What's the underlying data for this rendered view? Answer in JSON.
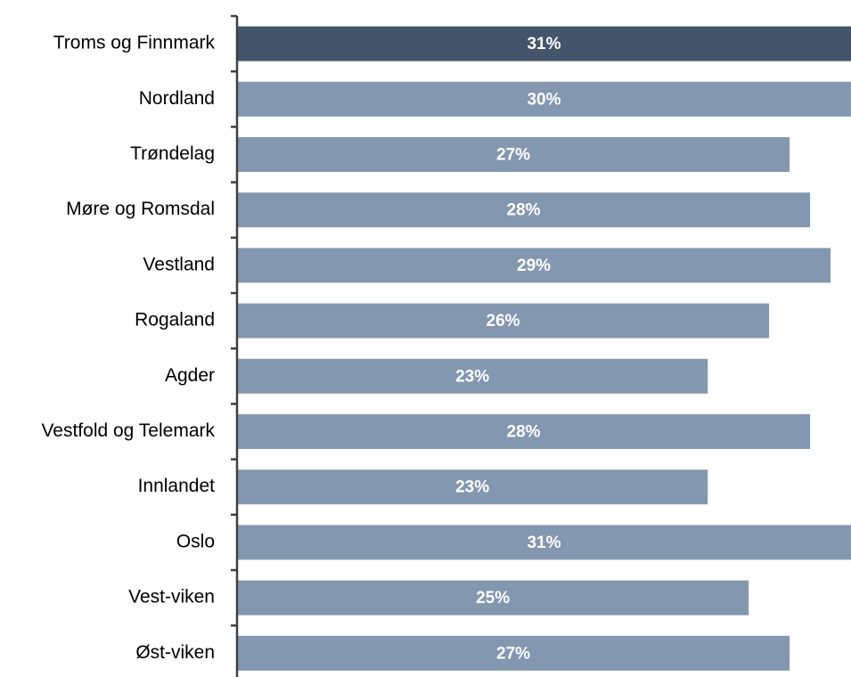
{
  "chart_data": {
    "type": "barh",
    "categories": [
      "Troms og Finnmark",
      "Nordland",
      "Trøndelag",
      "Møre og Romsdal",
      "Vestland",
      "Rogaland",
      "Agder",
      "Vestfold og Telemark",
      "Innlandet",
      "Oslo",
      "Vest-viken",
      "Øst-viken"
    ],
    "values": [
      31,
      30,
      27,
      28,
      29,
      26,
      23,
      28,
      23,
      31,
      25,
      27
    ],
    "value_labels": [
      "31%",
      "30%",
      "27%",
      "28%",
      "29%",
      "26%",
      "23%",
      "28%",
      "23%",
      "31%",
      "25%",
      "27%"
    ],
    "colors": [
      "#44546a",
      "#8497b0",
      "#8497b0",
      "#8497b0",
      "#8497b0",
      "#8497b0",
      "#8497b0",
      "#8497b0",
      "#8497b0",
      "#8497b0",
      "#8497b0",
      "#8497b0"
    ],
    "xlim": [
      0,
      30
    ]
  }
}
